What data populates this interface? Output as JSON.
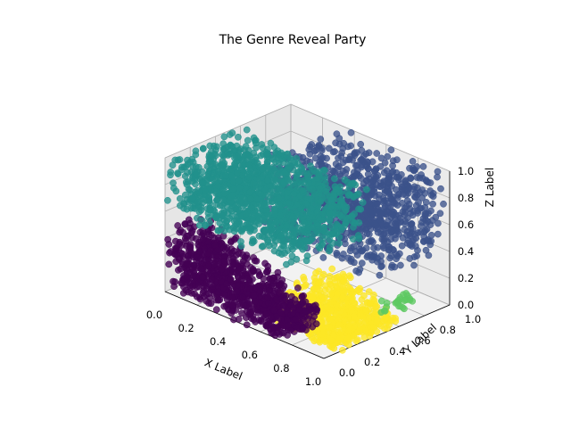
{
  "chart_data": {
    "type": "scatter",
    "projection": "3d",
    "title": "The Genre Reveal Party",
    "xlabel": "X Label",
    "ylabel": "Y Label",
    "zlabel": "Z Label",
    "xlim": [
      0.0,
      1.0
    ],
    "ylim": [
      0.0,
      1.0
    ],
    "zlim": [
      0.0,
      1.0
    ],
    "xticks": [
      "0.0",
      "0.2",
      "0.4",
      "0.6",
      "0.8",
      "1.0"
    ],
    "yticks": [
      "0.0",
      "0.2",
      "0.4",
      "0.6",
      "0.8",
      "1.0"
    ],
    "zticks": [
      "0.0",
      "0.2",
      "0.4",
      "0.6",
      "0.8",
      "1.0"
    ],
    "grid": true,
    "legend": "none",
    "colormap": "viridis",
    "clusters": [
      {
        "color": "#440154",
        "x": [
          0.0,
          0.75
        ],
        "y": [
          0.0,
          0.3
        ],
        "z": [
          0.0,
          0.5
        ],
        "shape": "wedge"
      },
      {
        "color": "#3b528b",
        "x": [
          0.3,
          1.0
        ],
        "y": [
          0.4,
          1.0
        ],
        "z": [
          0.4,
          1.0
        ],
        "shape": "box"
      },
      {
        "color": "#21918c",
        "x": [
          0.0,
          0.8
        ],
        "y": [
          0.0,
          0.6
        ],
        "z": [
          0.45,
          1.0
        ],
        "shape": "slab"
      },
      {
        "color": "#5ec962",
        "x": [
          0.95,
          1.0
        ],
        "y": [
          0.5,
          0.75
        ],
        "z": [
          0.1,
          0.2
        ],
        "shape": "edge"
      },
      {
        "color": "#fde725",
        "x": [
          0.6,
          1.0
        ],
        "y": [
          0.1,
          0.6
        ],
        "z": [
          0.0,
          0.3
        ],
        "shape": "wedge"
      }
    ]
  }
}
